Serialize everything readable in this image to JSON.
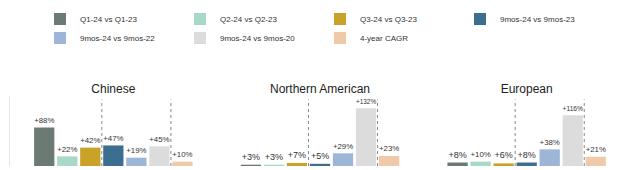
{
  "chart_data": {
    "type": "bar",
    "categories": [
      "Chinese",
      "Northern American",
      "European"
    ],
    "series": [
      {
        "name": "Q1-24 vs Q1-23",
        "color": "#6b7a72",
        "values": [
          88,
          3,
          8
        ],
        "value_labels": [
          "+88%",
          "+3%",
          "+8%"
        ]
      },
      {
        "name": "Q2-24 vs Q2-23",
        "color": "#a8d8c8",
        "values": [
          22,
          3,
          10
        ],
        "value_labels": [
          "+22%",
          "+3%",
          "+10%"
        ]
      },
      {
        "name": "Q3-24 vs Q3-23",
        "color": "#c9a227",
        "values": [
          42,
          7,
          6
        ],
        "value_labels": [
          "+42%",
          "+7%",
          "+6%"
        ]
      },
      {
        "name": "9mos-24 vs 9mos-23",
        "color": "#3c6e8f",
        "values": [
          47,
          5,
          8
        ],
        "value_labels": [
          "+47%",
          "+5%",
          "+8%"
        ]
      },
      {
        "name": "9mos-24 vs 9mos-22",
        "color": "#9db5d6",
        "values": [
          19,
          29,
          38
        ],
        "value_labels": [
          "+19%",
          "+29%",
          "+38%"
        ]
      },
      {
        "name": "9mos-24 vs 9mos-20",
        "color": "#dcdcdc",
        "values": [
          45,
          132,
          116
        ],
        "value_labels": [
          "+45%",
          "+132%",
          "+116%"
        ]
      },
      {
        "name": "4-year CAGR",
        "color": "#efc9a8",
        "values": [
          10,
          23,
          21
        ],
        "value_labels": [
          "+10%",
          "+23%",
          "+21%"
        ]
      }
    ],
    "ylim": [
      0,
      160
    ],
    "data_labels": true,
    "legend": "top",
    "tick_labels": "x",
    "grid": false
  }
}
